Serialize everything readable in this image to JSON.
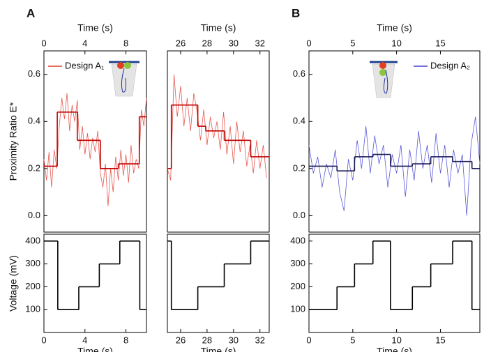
{
  "chart_data": [
    {
      "type": "line",
      "panel_label": "A",
      "xlabel": "Time (s)",
      "xaxis": "top",
      "ylabel": "Proximity Ratio E*",
      "xlim": [
        0,
        10
      ],
      "xticks": [
        0,
        4,
        8
      ],
      "ylim": [
        -0.07,
        0.7
      ],
      "yticks": [
        {
          "value": 0,
          "label": "0.0"
        },
        0.2,
        0.4,
        0.6
      ],
      "legend": "upper left",
      "series": [
        {
          "name": "Design A₁",
          "color": "#e8574f",
          "x": [
            0,
            0.25,
            0.5,
            0.75,
            1,
            1.25,
            1.5,
            1.75,
            2,
            2.25,
            2.5,
            2.75,
            3,
            3.25,
            3.5,
            3.75,
            4,
            4.25,
            4.5,
            4.75,
            5,
            5.25,
            5.5,
            5.75,
            6,
            6.25,
            6.5,
            6.75,
            7,
            7.25,
            7.5,
            7.75,
            8,
            8.25,
            8.5,
            8.75,
            9,
            9.25,
            9.5,
            9.75,
            10
          ],
          "values": [
            0.24,
            0.15,
            0.27,
            0.12,
            0.28,
            0.2,
            0.38,
            0.5,
            0.41,
            0.52,
            0.36,
            0.47,
            0.4,
            0.49,
            0.28,
            0.38,
            0.26,
            0.35,
            0.24,
            0.33,
            0.27,
            0.36,
            0.18,
            0.12,
            0.22,
            0.04,
            0.2,
            0.1,
            0.25,
            0.15,
            0.28,
            0.17,
            0.26,
            0.14,
            0.3,
            0.18,
            0.24,
            0.2,
            0.45,
            0.38,
            0.5
          ]
        },
        {
          "color": "#c00000",
          "step": "post",
          "x": [
            0,
            1.3,
            3.25,
            5.5,
            7.25,
            9.3
          ],
          "values": [
            0.21,
            0.44,
            0.32,
            0.2,
            0.22,
            0.42
          ]
        }
      ]
    },
    {
      "type": "line",
      "xlabel": "Time (s)",
      "xaxis": "top",
      "xlim": [
        25,
        32.7
      ],
      "xticks": [
        26,
        28,
        30,
        32
      ],
      "ylim": [
        -0.07,
        0.7
      ],
      "series": [
        {
          "color": "#e8574f",
          "x": [
            25,
            25.25,
            25.5,
            25.75,
            26,
            26.25,
            26.5,
            26.75,
            27,
            27.25,
            27.5,
            27.75,
            28,
            28.25,
            28.5,
            28.75,
            29,
            29.25,
            29.5,
            29.75,
            30,
            30.25,
            30.5,
            30.75,
            31,
            31.25,
            31.5,
            31.75,
            32,
            32.25,
            32.5
          ],
          "values": [
            0.2,
            0.15,
            0.6,
            0.42,
            0.55,
            0.38,
            0.5,
            0.36,
            0.52,
            0.44,
            0.32,
            0.45,
            0.3,
            0.42,
            0.33,
            0.4,
            0.28,
            0.44,
            0.26,
            0.38,
            0.22,
            0.4,
            0.27,
            0.36,
            0.21,
            0.3,
            0.18,
            0.32,
            0.2,
            0.3,
            0.16
          ]
        },
        {
          "color": "#c00000",
          "step": "post",
          "x": [
            25,
            25.3,
            27.3,
            27.9,
            29.3,
            31.3
          ],
          "values": [
            0.2,
            0.47,
            0.38,
            0.36,
            0.32,
            0.25
          ]
        }
      ]
    },
    {
      "type": "line",
      "panel_label": "B",
      "xlabel": "Time (s)",
      "xaxis": "top",
      "xlim": [
        0,
        19.5
      ],
      "xticks": [
        0,
        5,
        10,
        15
      ],
      "ylim": [
        -0.07,
        0.7
      ],
      "yticks": [
        {
          "value": 0,
          "label": "0.0"
        },
        0.2,
        0.4,
        0.6
      ],
      "legend": "upper right",
      "series": [
        {
          "name": "Design A₂",
          "color": "#5a5ad8",
          "x": [
            0,
            0.5,
            1,
            1.5,
            2,
            2.5,
            3,
            3.5,
            4,
            4.5,
            5,
            5.5,
            6,
            6.5,
            7,
            7.5,
            8,
            8.5,
            9,
            9.5,
            10,
            10.5,
            11,
            11.5,
            12,
            12.5,
            13,
            13.5,
            14,
            14.5,
            15,
            15.5,
            16,
            16.5,
            17,
            17.5,
            18,
            18.5,
            19,
            19.5
          ],
          "values": [
            0.3,
            0.18,
            0.25,
            0.12,
            0.22,
            0.16,
            0.28,
            0.1,
            0.02,
            0.24,
            0.15,
            0.32,
            0.2,
            0.38,
            0.18,
            0.34,
            0.22,
            0.3,
            0.12,
            0.26,
            0.18,
            0.3,
            0.08,
            0.28,
            0.15,
            0.36,
            0.2,
            0.3,
            0.14,
            0.35,
            0.18,
            0.3,
            0.12,
            0.28,
            0.18,
            0.26,
            0,
            0.3,
            0.42,
            0.22
          ]
        },
        {
          "color": "#1a1a5a",
          "step": "post",
          "x": [
            0,
            3.2,
            5.2,
            7.3,
            9.3,
            11.8,
            13.9,
            16.4,
            18.6
          ],
          "values": [
            0.21,
            0.19,
            0.25,
            0.26,
            0.21,
            0.22,
            0.25,
            0.23,
            0.2
          ]
        }
      ]
    },
    {
      "type": "line",
      "xlabel": "Time (s)",
      "xaxis": "bottom",
      "ylabel": "Voltage (mV)",
      "xlim": [
        0,
        10
      ],
      "xticks": [
        0,
        4,
        8
      ],
      "ylim": [
        0,
        430
      ],
      "yticks": [
        100,
        200,
        300,
        400
      ],
      "series": [
        {
          "color": "#000000",
          "step": "post",
          "x": [
            0,
            1.35,
            3.4,
            5.4,
            7.4,
            9.35
          ],
          "values": [
            400,
            100,
            200,
            300,
            400,
            100
          ]
        }
      ]
    },
    {
      "type": "line",
      "xlabel": "Time (s)",
      "xaxis": "bottom",
      "xlim": [
        25,
        32.7
      ],
      "xticks": [
        26,
        28,
        30,
        32
      ],
      "ylim": [
        0,
        430
      ],
      "series": [
        {
          "color": "#000000",
          "step": "post",
          "x": [
            25,
            25.3,
            27.3,
            29.3,
            31.3
          ],
          "values": [
            400,
            100,
            200,
            300,
            400
          ]
        }
      ]
    },
    {
      "type": "line",
      "xlabel": "Time (s)",
      "xaxis": "bottom",
      "xlim": [
        0,
        19.5
      ],
      "xticks": [
        0,
        5,
        10,
        15
      ],
      "ylim": [
        0,
        430
      ],
      "yticks": [
        100,
        200,
        300,
        400
      ],
      "series": [
        {
          "color": "#000000",
          "step": "post",
          "x": [
            0,
            3.2,
            5.2,
            7.3,
            9.3,
            11.8,
            13.9,
            16.4,
            18.6
          ],
          "values": [
            100,
            200,
            300,
            400,
            100,
            200,
            300,
            400,
            100
          ]
        }
      ]
    }
  ]
}
